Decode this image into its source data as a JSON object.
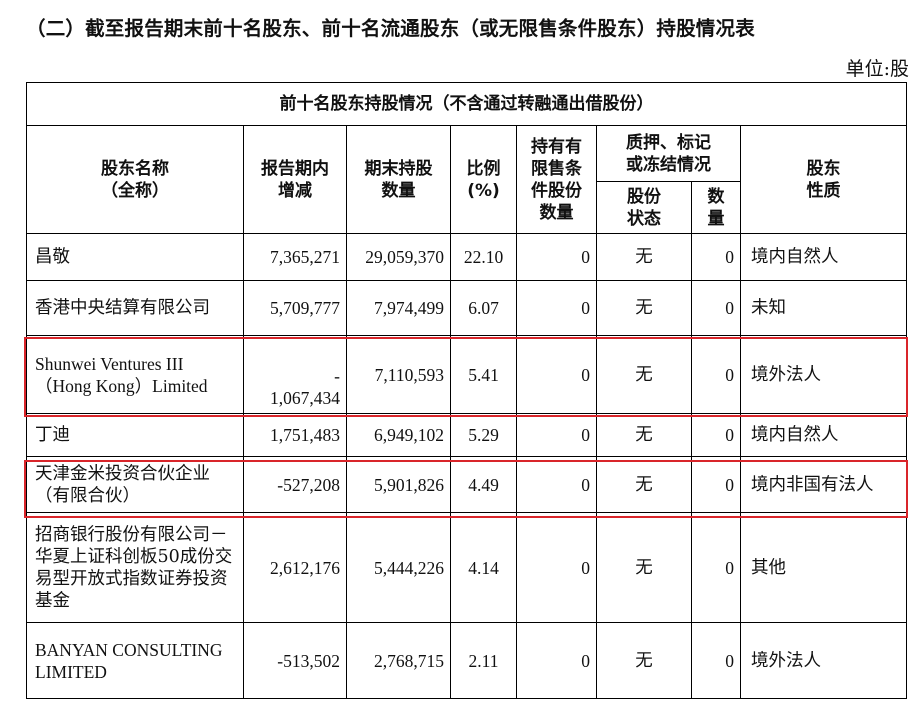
{
  "title": "（二）截至报告期末前十名股东、前十名流通股东（或无限售条件股东）持股情况表",
  "unit": "单位:股",
  "caption": "前十名股东持股情况（不含通过转融通出借股份）",
  "headers": {
    "name": [
      "股东名称",
      "（全称）"
    ],
    "change": [
      "报告期内",
      "增减"
    ],
    "shares": [
      "期末持股",
      "数量"
    ],
    "ratio": [
      "比例",
      "(%)"
    ],
    "restricted": [
      "持有有",
      "限售条",
      "件股份",
      "数量"
    ],
    "pledge_group": [
      "质押、标记",
      "或冻结情况"
    ],
    "pledge_status": [
      "股份",
      "状态"
    ],
    "pledge_qty": [
      "数",
      "量"
    ],
    "nature": [
      "股东",
      "性质"
    ]
  },
  "rows": [
    {
      "name": "昌敬",
      "change": "7,365,271",
      "shares": "29,059,370",
      "ratio": "22.10",
      "restricted": "0",
      "pledge_status": "无",
      "pledge_qty": "0",
      "nature": "境内自然人"
    },
    {
      "name": "香港中央结算有限公司",
      "change": "5,709,777",
      "shares": "7,974,499",
      "ratio": "6.07",
      "restricted": "0",
      "pledge_status": "无",
      "pledge_qty": "0",
      "nature": "未知"
    },
    {
      "name": "Shunwei Ventures III（Hong Kong）Limited",
      "change_sign": "-",
      "change": "1,067,434",
      "shares": "7,110,593",
      "ratio": "5.41",
      "restricted": "0",
      "pledge_status": "无",
      "pledge_qty": "0",
      "nature": "境外法人"
    },
    {
      "name": "丁迪",
      "change": "1,751,483",
      "shares": "6,949,102",
      "ratio": "5.29",
      "restricted": "0",
      "pledge_status": "无",
      "pledge_qty": "0",
      "nature": "境内自然人"
    },
    {
      "name": "天津金米投资合伙企业（有限合伙）",
      "change": "-527,208",
      "shares": "5,901,826",
      "ratio": "4.49",
      "restricted": "0",
      "pledge_status": "无",
      "pledge_qty": "0",
      "nature": "境内非国有法人"
    },
    {
      "name": "招商银行股份有限公司－华夏上证科创板50成份交易型开放式指数证券投资基金",
      "change": "2,612,176",
      "shares": "5,444,226",
      "ratio": "4.14",
      "restricted": "0",
      "pledge_status": "无",
      "pledge_qty": "0",
      "nature": "其他"
    },
    {
      "name": "BANYAN CONSULTING LIMITED",
      "change": "-513,502",
      "shares": "2,768,715",
      "ratio": "2.11",
      "restricted": "0",
      "pledge_status": "无",
      "pledge_qty": "0",
      "nature": "境外法人"
    }
  ],
  "highlight_color": "#d9252a"
}
